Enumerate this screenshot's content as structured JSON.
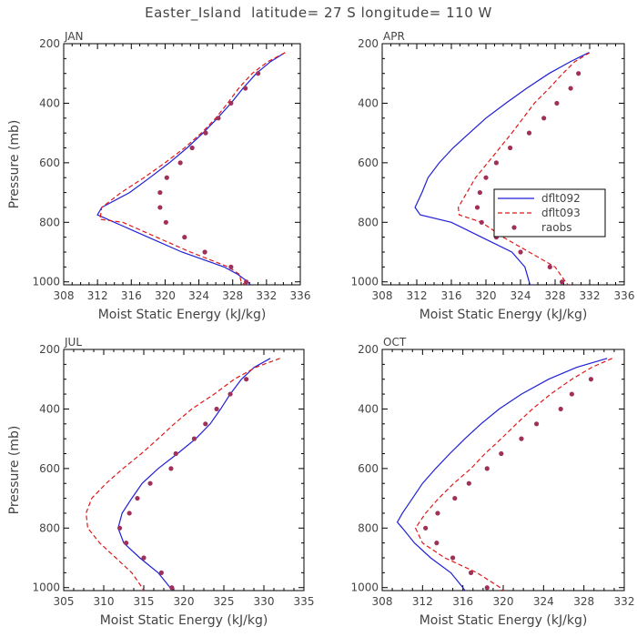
{
  "figure_title": "Easter_Island  latitude= 27 S longitude= 110 W",
  "legend": [
    {
      "label": "dflt092",
      "color": "#1f1fd6",
      "style": "solid"
    },
    {
      "label": "dflt093",
      "color": "#e01818",
      "style": "dashed"
    },
    {
      "label": "raobs",
      "color": "#a0305a",
      "style": "dots"
    }
  ],
  "chart_data": [
    {
      "type": "line",
      "title": "JAN",
      "xlabel": "Moist Static Energy (kJ/kg)",
      "ylabel": "Pressure (mb)",
      "xlim": [
        308,
        336
      ],
      "ylim": [
        1010,
        200
      ],
      "xticks": [
        308,
        312,
        316,
        320,
        324,
        328,
        332,
        336
      ],
      "yticks": [
        200,
        400,
        600,
        800,
        1000
      ],
      "series": [
        {
          "name": "dflt092",
          "points": [
            [
              334.2,
              230
            ],
            [
              332.5,
              260
            ],
            [
              330.8,
              300
            ],
            [
              329.2,
              350
            ],
            [
              327.8,
              400
            ],
            [
              326.2,
              450
            ],
            [
              324.5,
              500
            ],
            [
              322.6,
              550
            ],
            [
              320.5,
              600
            ],
            [
              318.2,
              650
            ],
            [
              315.8,
              700
            ],
            [
              312.5,
              750
            ],
            [
              312.0,
              775
            ],
            [
              314.0,
              800
            ],
            [
              318.0,
              850
            ],
            [
              322.0,
              900
            ],
            [
              327.0,
              950
            ],
            [
              328.6,
              975
            ],
            [
              329.8,
              1000
            ],
            [
              330.1,
              1010
            ]
          ]
        },
        {
          "name": "dflt093",
          "points": [
            [
              334.2,
              230
            ],
            [
              332.2,
              260
            ],
            [
              330.3,
              300
            ],
            [
              328.7,
              350
            ],
            [
              327.4,
              400
            ],
            [
              326.0,
              450
            ],
            [
              324.3,
              500
            ],
            [
              322.3,
              550
            ],
            [
              320.0,
              600
            ],
            [
              317.5,
              650
            ],
            [
              314.8,
              700
            ],
            [
              312.5,
              750
            ],
            [
              312.3,
              790
            ],
            [
              315.0,
              800
            ],
            [
              319.0,
              850
            ],
            [
              323.0,
              900
            ],
            [
              327.5,
              950
            ],
            [
              328.8,
              975
            ],
            [
              329.0,
              1000
            ],
            [
              329.5,
              1010
            ]
          ]
        },
        {
          "name": "raobs",
          "points": [
            [
              331.0,
              300
            ],
            [
              329.5,
              350
            ],
            [
              327.8,
              400
            ],
            [
              326.3,
              450
            ],
            [
              324.8,
              500
            ],
            [
              323.2,
              550
            ],
            [
              321.8,
              600
            ],
            [
              320.2,
              650
            ],
            [
              319.4,
              700
            ],
            [
              319.4,
              750
            ],
            [
              320.1,
              800
            ],
            [
              322.3,
              850
            ],
            [
              324.7,
              900
            ],
            [
              327.8,
              950
            ],
            [
              329.6,
              1000
            ]
          ]
        }
      ]
    },
    {
      "type": "line",
      "title": "APR",
      "xlabel": "Moist Static Energy (kJ/kg)",
      "ylabel": "",
      "xlim": [
        308,
        336
      ],
      "ylim": [
        1010,
        200
      ],
      "xticks": [
        308,
        312,
        316,
        320,
        324,
        328,
        332,
        336
      ],
      "yticks": [
        200,
        400,
        600,
        800,
        1000
      ],
      "series": [
        {
          "name": "dflt092",
          "points": [
            [
              331.9,
              230
            ],
            [
              329.8,
              260
            ],
            [
              327.3,
              300
            ],
            [
              324.7,
              350
            ],
            [
              322.3,
              400
            ],
            [
              320.0,
              450
            ],
            [
              318.1,
              500
            ],
            [
              316.2,
              550
            ],
            [
              314.6,
              600
            ],
            [
              313.3,
              650
            ],
            [
              312.6,
              700
            ],
            [
              311.8,
              750
            ],
            [
              312.4,
              775
            ],
            [
              316.0,
              800
            ],
            [
              319.5,
              850
            ],
            [
              323.0,
              900
            ],
            [
              324.5,
              950
            ],
            [
              325.0,
              1000
            ],
            [
              325.1,
              1010
            ]
          ]
        },
        {
          "name": "dflt093",
          "points": [
            [
              332.0,
              230
            ],
            [
              330.3,
              260
            ],
            [
              328.9,
              300
            ],
            [
              327.3,
              350
            ],
            [
              325.6,
              400
            ],
            [
              324.3,
              450
            ],
            [
              323.0,
              500
            ],
            [
              321.6,
              550
            ],
            [
              320.2,
              600
            ],
            [
              318.8,
              650
            ],
            [
              317.8,
              700
            ],
            [
              316.8,
              750
            ],
            [
              316.9,
              775
            ],
            [
              319.5,
              800
            ],
            [
              322.0,
              850
            ],
            [
              325.0,
              900
            ],
            [
              328.0,
              950
            ],
            [
              329.2,
              1000
            ],
            [
              329.5,
              1010
            ]
          ]
        },
        {
          "name": "raobs",
          "points": [
            [
              330.7,
              300
            ],
            [
              329.8,
              350
            ],
            [
              328.2,
              400
            ],
            [
              326.7,
              450
            ],
            [
              325.0,
              500
            ],
            [
              322.8,
              550
            ],
            [
              321.2,
              600
            ],
            [
              320.0,
              650
            ],
            [
              319.3,
              700
            ],
            [
              319.0,
              750
            ],
            [
              319.5,
              800
            ],
            [
              321.2,
              850
            ],
            [
              324.0,
              900
            ],
            [
              327.4,
              950
            ],
            [
              328.8,
              1000
            ]
          ]
        }
      ]
    },
    {
      "type": "line",
      "title": "JUL",
      "xlabel": "Moist Static Energy (kJ/kg)",
      "ylabel": "Pressure (mb)",
      "xlim": [
        305,
        335
      ],
      "ylim": [
        1010,
        200
      ],
      "xticks": [
        305,
        310,
        315,
        320,
        325,
        330,
        335
      ],
      "yticks": [
        200,
        400,
        600,
        800,
        1000
      ],
      "series": [
        {
          "name": "dflt092",
          "points": [
            [
              330.8,
              230
            ],
            [
              328.8,
              260
            ],
            [
              327.2,
              300
            ],
            [
              325.8,
              350
            ],
            [
              324.6,
              400
            ],
            [
              323.3,
              450
            ],
            [
              321.5,
              500
            ],
            [
              319.2,
              550
            ],
            [
              316.8,
              600
            ],
            [
              314.8,
              650
            ],
            [
              313.5,
              700
            ],
            [
              312.3,
              750
            ],
            [
              311.8,
              800
            ],
            [
              312.5,
              850
            ],
            [
              314.5,
              900
            ],
            [
              316.8,
              950
            ],
            [
              318.3,
              1000
            ],
            [
              318.6,
              1010
            ]
          ]
        },
        {
          "name": "dflt093",
          "points": [
            [
              332.0,
              230
            ],
            [
              329.0,
              260
            ],
            [
              326.3,
              300
            ],
            [
              323.8,
              350
            ],
            [
              321.0,
              400
            ],
            [
              318.8,
              450
            ],
            [
              316.8,
              500
            ],
            [
              314.7,
              550
            ],
            [
              312.4,
              600
            ],
            [
              310.3,
              650
            ],
            [
              308.5,
              700
            ],
            [
              307.8,
              750
            ],
            [
              308.0,
              800
            ],
            [
              309.5,
              850
            ],
            [
              311.5,
              900
            ],
            [
              313.5,
              950
            ],
            [
              314.8,
              1000
            ],
            [
              315.0,
              1010
            ]
          ]
        },
        {
          "name": "raobs",
          "points": [
            [
              327.8,
              300
            ],
            [
              325.8,
              350
            ],
            [
              324.1,
              400
            ],
            [
              322.7,
              450
            ],
            [
              321.3,
              500
            ],
            [
              319.0,
              550
            ],
            [
              318.4,
              600
            ],
            [
              315.8,
              650
            ],
            [
              314.2,
              700
            ],
            [
              313.2,
              750
            ],
            [
              312.0,
              800
            ],
            [
              312.8,
              850
            ],
            [
              315.0,
              900
            ],
            [
              317.2,
              950
            ],
            [
              318.5,
              1000
            ]
          ]
        }
      ]
    },
    {
      "type": "line",
      "title": "OCT",
      "xlabel": "Moist Static Energy (kJ/kg)",
      "ylabel": "",
      "xlim": [
        308,
        332
      ],
      "ylim": [
        1010,
        200
      ],
      "xticks": [
        308,
        312,
        316,
        320,
        324,
        328,
        332
      ],
      "yticks": [
        200,
        400,
        600,
        800,
        1000
      ],
      "series": [
        {
          "name": "dflt092",
          "points": [
            [
              330.3,
              230
            ],
            [
              327.3,
              260
            ],
            [
              324.5,
              300
            ],
            [
              321.8,
              350
            ],
            [
              319.6,
              400
            ],
            [
              317.8,
              450
            ],
            [
              316.2,
              500
            ],
            [
              314.7,
              550
            ],
            [
              313.3,
              600
            ],
            [
              312.0,
              650
            ],
            [
              311.0,
              700
            ],
            [
              310.0,
              750
            ],
            [
              309.5,
              780
            ],
            [
              310.0,
              800
            ],
            [
              311.2,
              850
            ],
            [
              312.8,
              900
            ],
            [
              314.8,
              950
            ],
            [
              316.0,
              1000
            ],
            [
              316.2,
              1010
            ]
          ]
        },
        {
          "name": "dflt093",
          "points": [
            [
              330.8,
              230
            ],
            [
              328.8,
              260
            ],
            [
              326.8,
              300
            ],
            [
              324.7,
              350
            ],
            [
              322.9,
              400
            ],
            [
              321.3,
              450
            ],
            [
              319.8,
              500
            ],
            [
              318.2,
              550
            ],
            [
              316.8,
              600
            ],
            [
              315.1,
              650
            ],
            [
              313.6,
              700
            ],
            [
              312.3,
              750
            ],
            [
              311.3,
              800
            ],
            [
              312.0,
              850
            ],
            [
              314.2,
              900
            ],
            [
              317.4,
              950
            ],
            [
              319.7,
              1000
            ],
            [
              320.0,
              1010
            ]
          ]
        },
        {
          "name": "raobs",
          "points": [
            [
              328.7,
              300
            ],
            [
              326.8,
              350
            ],
            [
              325.7,
              400
            ],
            [
              323.3,
              450
            ],
            [
              321.8,
              500
            ],
            [
              319.8,
              550
            ],
            [
              318.4,
              600
            ],
            [
              316.6,
              650
            ],
            [
              315.2,
              700
            ],
            [
              313.5,
              750
            ],
            [
              312.3,
              800
            ],
            [
              313.4,
              850
            ],
            [
              315.0,
              900
            ],
            [
              316.8,
              950
            ],
            [
              318.4,
              1000
            ]
          ]
        }
      ]
    }
  ]
}
